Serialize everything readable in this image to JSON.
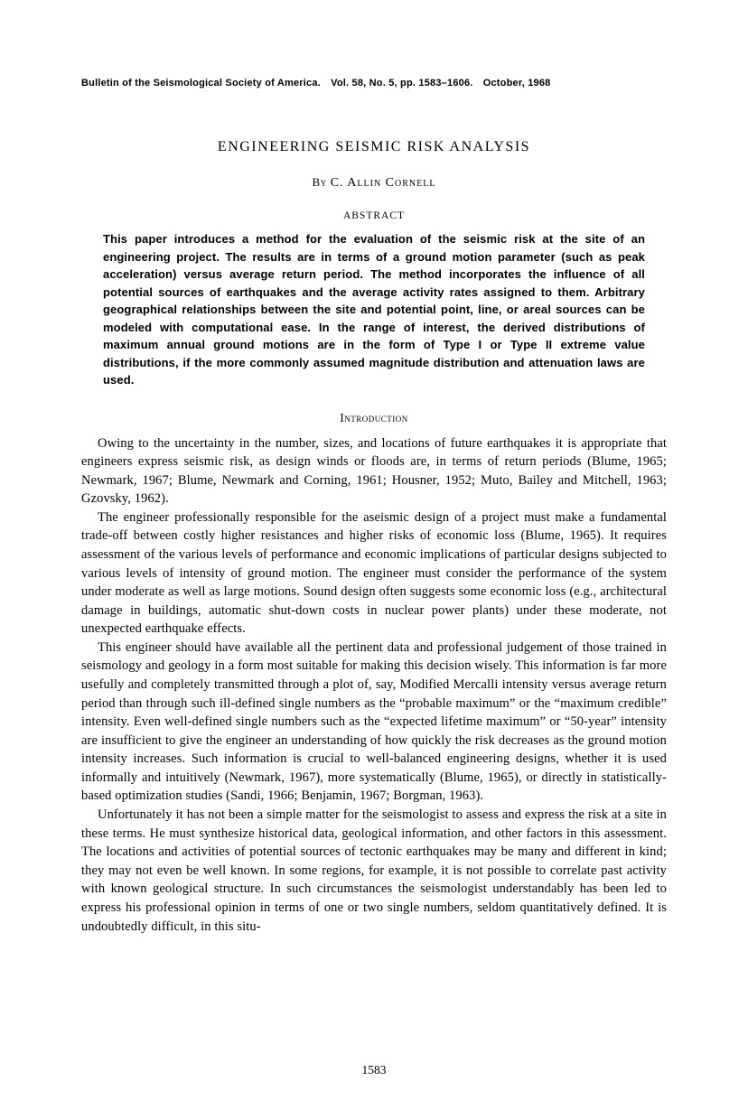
{
  "journal_header": "Bulletin of the Seismological Society of America. Vol. 58, No. 5, pp. 1583–1606. October, 1968",
  "title": "ENGINEERING SEISMIC RISK ANALYSIS",
  "author_by": "By",
  "author_name": "C. Allin Cornell",
  "abstract_heading": "ABSTRACT",
  "abstract": "This paper introduces a method for the evaluation of the seismic risk at the site of an engineering project. The results are in terms of a ground motion parameter (such as peak acceleration) versus average return period. The method incorporates the influence of all potential sources of earthquakes and the average activity rates assigned to them. Arbitrary geographical relationships between the site and potential point, line, or areal sources can be modeled with computational ease. In the range of interest, the derived distributions of maximum annual ground motions are in the form of Type I or Type II extreme value distributions, if the more commonly assumed magnitude distribution and attenuation laws are used.",
  "intro_heading": "Introduction",
  "paragraphs": {
    "p1": "Owing to the uncertainty in the number, sizes, and locations of future earthquakes it is appropriate that engineers express seismic risk, as design winds or floods are, in terms of return periods (Blume, 1965; Newmark, 1967; Blume, Newmark and Corning, 1961; Housner, 1952; Muto, Bailey and Mitchell, 1963; Gzovsky, 1962).",
    "p2": "The engineer professionally responsible for the aseismic design of a project must make a fundamental trade-off between costly higher resistances and higher risks of economic loss (Blume, 1965). It requires assessment of the various levels of performance and economic implications of particular designs subjected to various levels of intensity of ground motion. The engineer must consider the performance of the system under moderate as well as large motions. Sound design often suggests some economic loss (e.g., architectural damage in buildings, automatic shut-down costs in nuclear power plants) under these moderate, not unexpected earthquake effects.",
    "p3": "This engineer should have available all the pertinent data and professional judgement of those trained in seismology and geology in a form most suitable for making this decision wisely. This information is far more usefully and completely transmitted through a plot of, say, Modified Mercalli intensity versus average return period than through such ill-defined single numbers as the “probable maximum” or the “maximum credible” intensity. Even well-defined single numbers such as the “expected lifetime maximum” or “50-year” intensity are insufficient to give the engineer an understanding of how quickly the risk decreases as the ground motion intensity increases. Such information is crucial to well-balanced engineering designs, whether it is used informally and intuitively (Newmark, 1967), more systematically (Blume, 1965), or directly in statistically-based optimization studies (Sandi, 1966; Benjamin, 1967; Borgman, 1963).",
    "p4": "Unfortunately it has not been a simple matter for the seismologist to assess and express the risk at a site in these terms. He must synthesize historical data, geological information, and other factors in this assessment. The locations and activities of potential sources of tectonic earthquakes may be many and different in kind; they may not even be well known. In some regions, for example, it is not possible to correlate past activity with known geological structure. In such circumstances the seismologist understandably has been led to express his professional opinion in terms of one or two single numbers, seldom quantitatively defined. It is undoubtedly difficult, in this situ-"
  },
  "page_number": "1583",
  "colors": {
    "background": "#ffffff",
    "text": "#000000"
  },
  "typography": {
    "serif_family": "Times New Roman",
    "sans_family": "Arial",
    "title_fontsize": 16,
    "body_fontsize": 14.5,
    "abstract_fontsize": 13,
    "header_fontsize": 11
  }
}
